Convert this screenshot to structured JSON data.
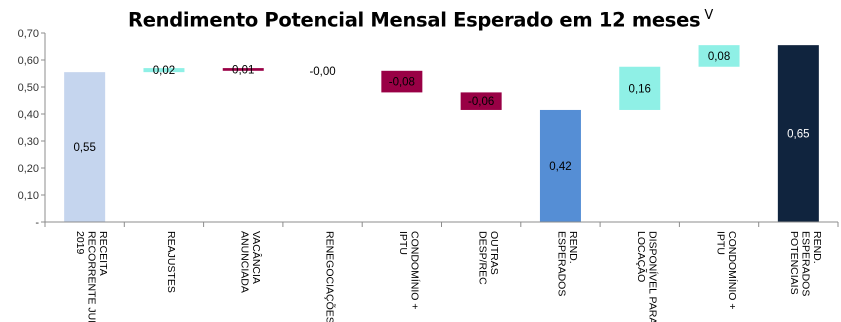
{
  "chart_data": {
    "type": "bar",
    "subtype": "waterfall",
    "title": "Rendimento Potencial Mensal Esperado em 12 meses",
    "title_suffix": "V",
    "ylim": [
      0,
      0.7
    ],
    "y_ticks": [
      "0,70",
      "0,60",
      "0,50",
      "0,40",
      "0,30",
      "0,20",
      "0,10",
      "-"
    ],
    "grid": false,
    "legend": "none",
    "categories": [
      [
        "RECEITA",
        "RECORRENTE JUN",
        "2019"
      ],
      [
        "REAJUSTES"
      ],
      [
        "VACÂNCIA",
        "ANUNCIADA"
      ],
      [
        "RENEGOCIAÇÕES"
      ],
      [
        "CONDOMÍNIO +",
        "IPTU"
      ],
      [
        "OUTRAS",
        "DESP/REC"
      ],
      [
        "REND.",
        "ESPERADOS"
      ],
      [
        "DISPONÍVEL PARA",
        "LOCAÇÃO"
      ],
      [
        "CONDOMÍNIO +",
        "IPTU"
      ],
      [
        "REND.",
        "ESPERADOS",
        "POTENCIAIS"
      ]
    ],
    "bars": [
      {
        "base": 0.0,
        "top": 0.555,
        "label": "0,55",
        "color": "#c5d5ee",
        "text_color": "#000000"
      },
      {
        "base": 0.555,
        "top": 0.57,
        "label": "0,02",
        "color": "#8ff0e6",
        "text_color": "#000000"
      },
      {
        "base": 0.56,
        "top": 0.57,
        "label": "0,01",
        "color": "#990045",
        "text_color": "#000000"
      },
      {
        "base": 0.56,
        "top": 0.56,
        "label": "-0,00",
        "color": "#990045",
        "text_color": "#000000"
      },
      {
        "base": 0.48,
        "top": 0.56,
        "label": "-0,08",
        "color": "#990045",
        "text_color": "#000000"
      },
      {
        "base": 0.415,
        "top": 0.48,
        "label": "-0,06",
        "color": "#990045",
        "text_color": "#000000"
      },
      {
        "base": 0.0,
        "top": 0.415,
        "label": "0,42",
        "color": "#558ed5",
        "text_color": "#000000"
      },
      {
        "base": 0.415,
        "top": 0.575,
        "label": "0,16",
        "color": "#8ff0e6",
        "text_color": "#000000"
      },
      {
        "base": 0.575,
        "top": 0.655,
        "label": "0,08",
        "color": "#8ff0e6",
        "text_color": "#000000"
      },
      {
        "base": 0.0,
        "top": 0.655,
        "label": "0,65",
        "color": "#10243e",
        "text_color": "#ffffff"
      }
    ]
  }
}
